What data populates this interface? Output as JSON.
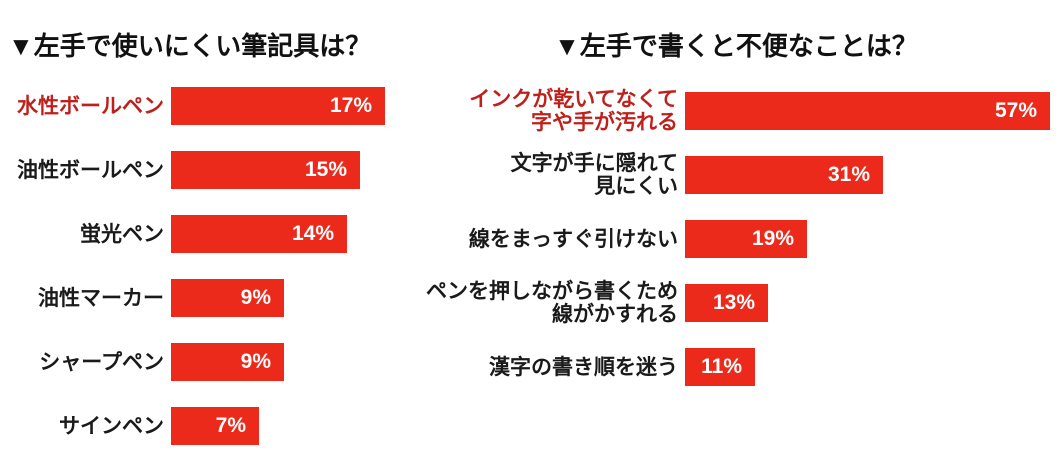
{
  "page": {
    "background": "#ffffff"
  },
  "colors": {
    "bar": "#EC2A1B",
    "bar_text": "#FFFFFF",
    "label": "#1A1A1A",
    "highlight_label": "#BE211C",
    "title": "#111111"
  },
  "chart_data": [
    {
      "type": "bar",
      "orientation": "horizontal",
      "title": "▼左手で使いにくい筆記具は？",
      "unit": "%",
      "categories": [
        "水性ボールペン",
        "油性ボールペン",
        "蛍光ペン",
        "油性マーカー",
        "シャープペン",
        "サインペン"
      ],
      "values": [
        17,
        15,
        14,
        9,
        9,
        7
      ],
      "value_labels": [
        "17%",
        "15%",
        "14%",
        "9%",
        "9%",
        "7%"
      ],
      "highlighted_category_index": 0,
      "xlim": [
        0,
        20
      ],
      "grid": false,
      "legend": false
    },
    {
      "type": "bar",
      "orientation": "horizontal",
      "title": "▼左手で書くと不便なことは？",
      "unit": "%",
      "categories": [
        "インクが乾いてなくて\n字や手が汚れる",
        "文字が手に隠れて\n見にくい",
        "線をまっすぐ引けない",
        "ペンを押しながら書くため\n線がかすれる",
        "漢字の書き順を迷う"
      ],
      "values": [
        57,
        31,
        19,
        13,
        11
      ],
      "value_labels": [
        "57%",
        "31%",
        "19%",
        "13%",
        "11%"
      ],
      "highlighted_category_index": 0,
      "xlim": [
        0,
        60
      ],
      "grid": false,
      "legend": false
    }
  ]
}
